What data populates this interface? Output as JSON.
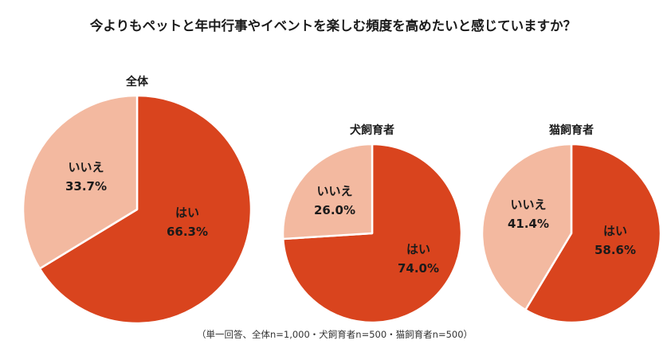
{
  "chart_data": {
    "type": "pie",
    "title": "今よりもペットと年中行事やイベントを楽しむ頻度を高めたいと感じていますか？",
    "footnote": "（単一回答、全体n=1,000・犬飼育者n=500・猫飼育者n=500）",
    "colors": {
      "yes": "#d9441e",
      "no": "#f3b9a0",
      "label": "#1a1a1a"
    },
    "charts": [
      {
        "id": "all",
        "title": "全体",
        "slices": [
          {
            "key": "yes",
            "label": "はい",
            "value": 66.3,
            "display": "66.3%"
          },
          {
            "key": "no",
            "label": "いいえ",
            "value": 33.7,
            "display": "33.7%"
          }
        ]
      },
      {
        "id": "dog",
        "title": "犬飼育者",
        "slices": [
          {
            "key": "yes",
            "label": "はい",
            "value": 74.0,
            "display": "74.0%"
          },
          {
            "key": "no",
            "label": "いいえ",
            "value": 26.0,
            "display": "26.0%"
          }
        ]
      },
      {
        "id": "cat",
        "title": "猫飼育者",
        "slices": [
          {
            "key": "yes",
            "label": "はい",
            "value": 58.6,
            "display": "58.6%"
          },
          {
            "key": "no",
            "label": "いいえ",
            "value": 41.4,
            "display": "41.4%"
          }
        ]
      }
    ]
  }
}
